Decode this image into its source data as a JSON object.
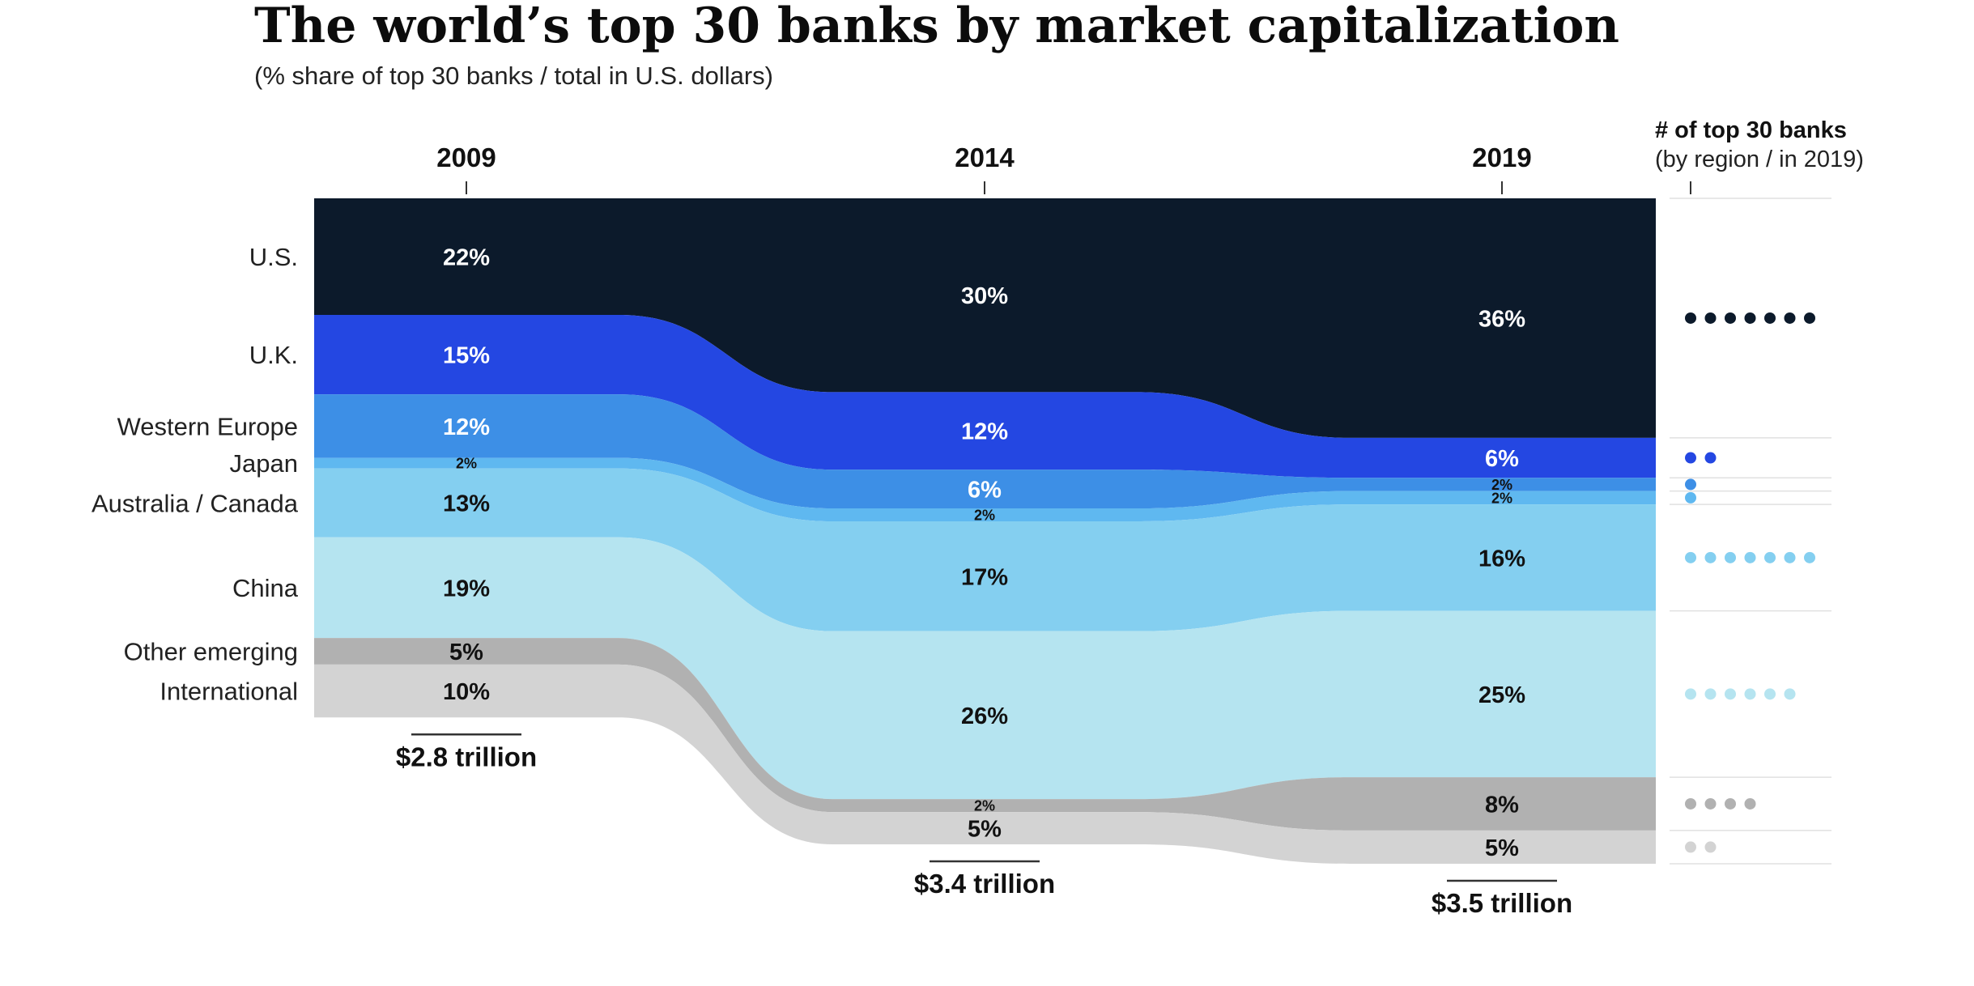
{
  "chart_data": {
    "type": "area",
    "title": "The world’s top 30 banks by market capitalization",
    "subtitle": "(% share of top 30 banks / total in U.S. dollars)",
    "years": [
      "2009",
      "2014",
      "2019"
    ],
    "totals": [
      "$2.8 trillion",
      "$3.4 trillion",
      "$3.5 trillion"
    ],
    "totals_usd_trillion": [
      2.8,
      3.4,
      3.5
    ],
    "count_header": [
      "# of top 30 banks",
      "(by region / in 2019)"
    ],
    "series": [
      {
        "name": "U.S.",
        "color": "#0c1a2b",
        "values": [
          22,
          30,
          36
        ],
        "labels": [
          "22%",
          "30%",
          "36%"
        ],
        "banks_2019": 7
      },
      {
        "name": "U.K.",
        "color": "#2447e2",
        "values": [
          15,
          12,
          6
        ],
        "labels": [
          "15%",
          "12%",
          "6%"
        ],
        "banks_2019": 2
      },
      {
        "name": "Western Europe",
        "color": "#3d8fe6",
        "values": [
          12,
          6,
          2
        ],
        "labels": [
          "12%",
          "6%",
          "2%"
        ],
        "banks_2019": 1
      },
      {
        "name": "Japan",
        "color": "#5fb8f0",
        "values": [
          2,
          2,
          2
        ],
        "labels": [
          "2%",
          "2%",
          "2%"
        ],
        "banks_2019": 1
      },
      {
        "name": "Australia / Canada",
        "color": "#84cff0",
        "values": [
          13,
          17,
          16
        ],
        "labels": [
          "13%",
          "17%",
          "16%"
        ],
        "banks_2019": 7
      },
      {
        "name": "China",
        "color": "#b5e4f0",
        "values": [
          19,
          26,
          25
        ],
        "labels": [
          "19%",
          "26%",
          "25%"
        ],
        "banks_2019": 6
      },
      {
        "name": "Other emerging",
        "color": "#b1b1b1",
        "values": [
          5,
          2,
          8
        ],
        "labels": [
          "5%",
          "2%",
          "8%"
        ],
        "banks_2019": 4
      },
      {
        "name": "International",
        "color": "#d3d3d3",
        "values": [
          10,
          5,
          5
        ],
        "labels": [
          "10%",
          "5%",
          "5%"
        ],
        "banks_2019": 2
      }
    ]
  }
}
